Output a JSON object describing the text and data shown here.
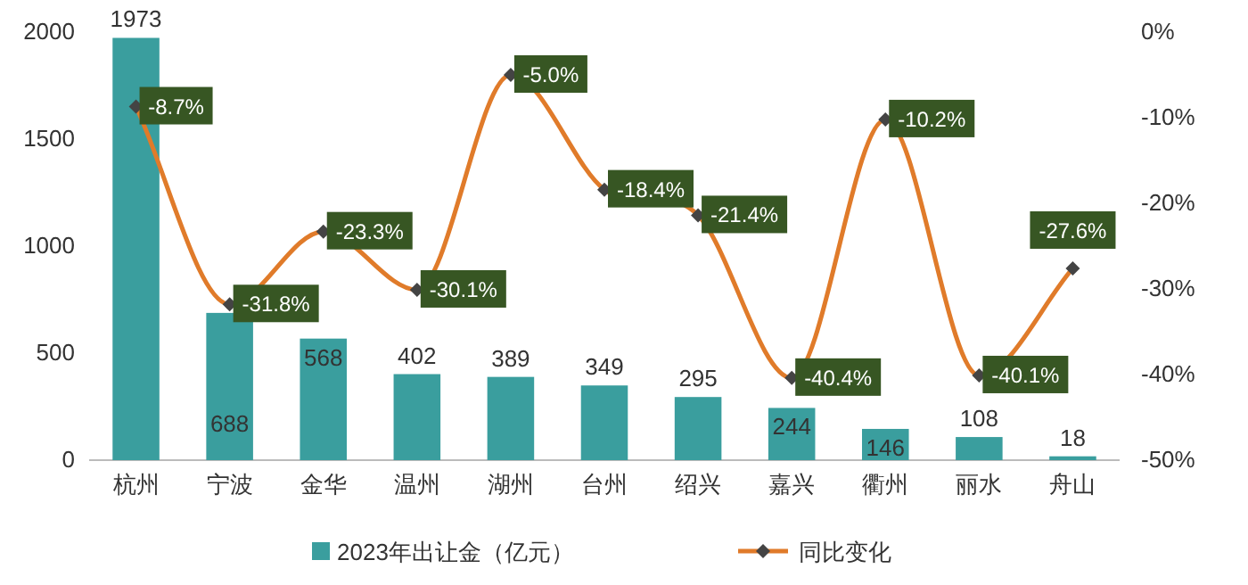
{
  "chart_data": {
    "type": "bar",
    "categories": [
      "杭州",
      "宁波",
      "金华",
      "温州",
      "湖州",
      "台州",
      "绍兴",
      "嘉兴",
      "衢州",
      "丽水",
      "舟山"
    ],
    "series": [
      {
        "name": "2023年出让金（亿元）",
        "type": "bar",
        "color": "#3a9e9e",
        "values": [
          1973,
          688,
          568,
          402,
          389,
          349,
          295,
          244,
          146,
          108,
          18
        ],
        "value_labels": [
          "1973",
          "688",
          "568",
          "402",
          "389",
          "349",
          "295",
          "244",
          "146",
          "108",
          "18"
        ]
      },
      {
        "name": "同比变化",
        "type": "line",
        "axis": "y2",
        "color": "#e07b2a",
        "values": [
          -8.7,
          -31.8,
          -23.3,
          -30.1,
          -5.0,
          -18.4,
          -21.4,
          -40.4,
          -10.2,
          -40.1,
          -27.6
        ],
        "value_labels": [
          "-8.7%",
          "-31.8%",
          "-23.3%",
          "-30.1%",
          "-5.0%",
          "-18.4%",
          "-21.4%",
          "-40.4%",
          "-10.2%",
          "-40.1%",
          "-27.6%"
        ]
      }
    ],
    "ylim": [
      0,
      2000
    ],
    "yticks": [
      0,
      500,
      1000,
      1500,
      2000
    ],
    "y2lim": [
      -50,
      0
    ],
    "y2ticks": [
      {
        "value": -50,
        "label": "-50%"
      },
      {
        "value": -40,
        "label": "-40%"
      },
      {
        "value": -30,
        "label": "-30%"
      },
      {
        "value": -20,
        "label": "-20%"
      },
      {
        "value": -10,
        "label": "-10%"
      },
      {
        "value": 0,
        "label": "0%"
      }
    ],
    "marker": "diamond",
    "legend": "bottom",
    "grid": false
  }
}
